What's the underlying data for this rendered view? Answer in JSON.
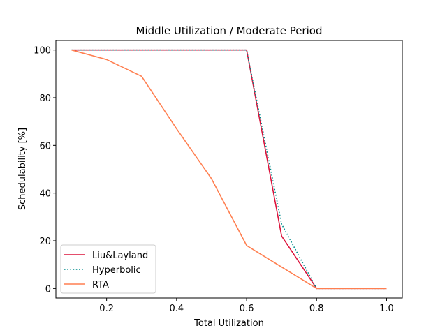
{
  "chart_data": {
    "type": "line",
    "title": "Middle Utilization / Moderate Period",
    "xlabel": "Total Utilization",
    "ylabel": "Schedulability [%]",
    "xlim": [
      0.055,
      1.045
    ],
    "ylim": [
      -4,
      104
    ],
    "xticks": [
      0.2,
      0.4,
      0.6,
      0.8,
      1.0
    ],
    "xtick_labels": [
      "0.2",
      "0.4",
      "0.6",
      "0.8",
      "1.0"
    ],
    "yticks": [
      0,
      20,
      40,
      60,
      80,
      100
    ],
    "ytick_labels": [
      "0",
      "20",
      "40",
      "60",
      "80",
      "100"
    ],
    "x": [
      0.1,
      0.2,
      0.3,
      0.4,
      0.5,
      0.6,
      0.7,
      0.8,
      0.9,
      1.0
    ],
    "grid": false,
    "legend_position": "lower-left",
    "series": [
      {
        "name": "Liu&Layland",
        "color": "#dc143c",
        "style": "solid",
        "values": [
          100,
          100,
          100,
          100,
          100,
          100,
          22,
          0,
          0,
          0
        ]
      },
      {
        "name": "Hyperbolic",
        "color": "#008b8b",
        "style": "dotted",
        "values": [
          100,
          100,
          100,
          100,
          100,
          100,
          27,
          0,
          0,
          0
        ]
      },
      {
        "name": "RTA",
        "color": "#ff7f50",
        "style": "solid",
        "values": [
          100,
          96,
          89,
          67,
          46,
          18,
          9,
          0,
          0,
          0
        ]
      }
    ]
  }
}
